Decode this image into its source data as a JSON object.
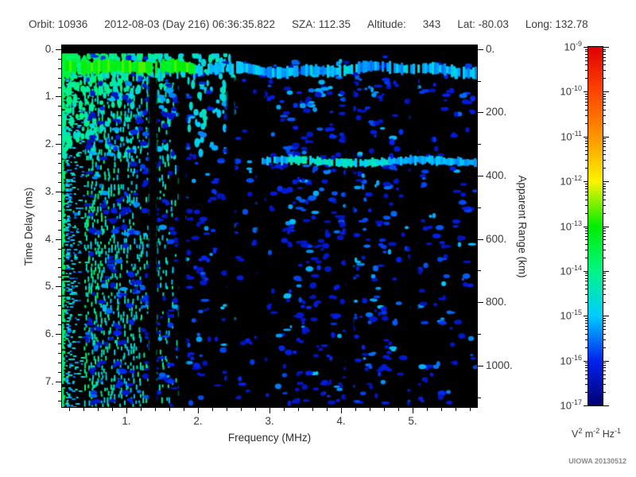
{
  "header": {
    "segments": [
      "Orbit: 10936",
      "2012-08-03 (Day 216) 06:36:35.822",
      "SZA: 112.35",
      "Altitude:",
      "343",
      "Lat: -80.03",
      "Long: 132.78"
    ]
  },
  "watermark": "UIOWA 20130512",
  "chart_data": {
    "type": "heatmap",
    "description": "Radar sounder ionogram: received echo spectral density versus sounding frequency and echo time delay",
    "xlabel": "Frequency (MHz)",
    "x_range": [
      0.1,
      5.9
    ],
    "x_ticks": [
      {
        "v": 1,
        "label": "1."
      },
      {
        "v": 2,
        "label": "2."
      },
      {
        "v": 3,
        "label": "3."
      },
      {
        "v": 4,
        "label": "4."
      },
      {
        "v": 5,
        "label": "5."
      }
    ],
    "x_minor_step": 0.2,
    "ylabel_left": "Time Delay (ms)",
    "y_range": [
      -0.08,
      7.54
    ],
    "y_ticks": [
      {
        "v": 0,
        "label": "0."
      },
      {
        "v": 1,
        "label": "1."
      },
      {
        "v": 2,
        "label": "2."
      },
      {
        "v": 3,
        "label": "3."
      },
      {
        "v": 4,
        "label": "4."
      },
      {
        "v": 5,
        "label": "5."
      },
      {
        "v": 6,
        "label": "6."
      },
      {
        "v": 7,
        "label": "7."
      }
    ],
    "y_minor_step": 0.2,
    "ylabel_right": "Apparent Range (km)",
    "km_per_ms": 150,
    "y2_ticks": [
      {
        "km": 0,
        "label": "0."
      },
      {
        "km": 200,
        "label": "200."
      },
      {
        "km": 400,
        "label": "400."
      },
      {
        "km": 600,
        "label": "600."
      },
      {
        "km": 800,
        "label": "800."
      },
      {
        "km": 1000,
        "label": "1000."
      }
    ],
    "y2_minor_km": [
      100,
      300,
      500,
      700,
      900,
      1100
    ],
    "background": "#000000",
    "seed": 20130512,
    "colorbar": {
      "exponents": [
        -9,
        -10,
        -11,
        -12,
        -13,
        -14,
        -15,
        -16,
        -17
      ],
      "scale": "log10",
      "stops": [
        {
          "e": -17,
          "c": "#000070"
        },
        {
          "e": -16,
          "c": "#0022ee"
        },
        {
          "e": -15,
          "c": "#00ccff"
        },
        {
          "e": -14,
          "c": "#00f585"
        },
        {
          "e": -13,
          "c": "#00ee00"
        },
        {
          "e": -12,
          "c": "#fdf400"
        },
        {
          "e": -11,
          "c": "#ff9400"
        },
        {
          "e": -10,
          "c": "#ff4500"
        },
        {
          "e": -9,
          "c": "#dd0000"
        }
      ],
      "unit_parts": [
        {
          "b": "V",
          "s": "2"
        },
        {
          "b": " m",
          "s": "-2"
        },
        {
          "b": " Hz",
          "s": "-1"
        }
      ]
    },
    "features": {
      "top_blank_band": {
        "delay_max": 0.09
      },
      "first_echo": {
        "delay": 0.33,
        "thickness_ms": 0.22,
        "freq_range": [
          0.1,
          5.9
        ],
        "green_until_mhz": 1.95,
        "green_intensity_exp": -13.15,
        "blue_intensity_exp": -15.25
      },
      "ionosphere_region": {
        "freq_range": [
          0.1,
          2.5
        ],
        "delay_range": [
          0.12,
          2.3
        ],
        "intensity_exp_range": [
          -15.0,
          -13.0
        ]
      },
      "left_edge_band": {
        "freq_range": [
          0.1,
          0.45
        ],
        "delay_range": [
          0.1,
          7.54
        ],
        "intensity_exp_range": [
          -14.3,
          -13.2
        ]
      },
      "vertical_streaks": {
        "freq_range": [
          0.42,
          1.75
        ],
        "delay_range": [
          0.3,
          7.54
        ],
        "intensity_exp_range": [
          -15.2,
          -14.0
        ]
      },
      "surface_echo": {
        "delay": 2.37,
        "thickness_ms": 0.15,
        "freq_range": [
          2.9,
          5.9
        ],
        "bright_freq_range": [
          3.25,
          4.65
        ],
        "intensity_exp": -14.7
      },
      "scatter_noise": {
        "count": 950,
        "delay_range": [
          0.15,
          7.5
        ],
        "intensity_exp_range": [
          -16.4,
          -15.0
        ],
        "bands": [
          {
            "freq_range": [
              0.45,
              2.1
            ],
            "weight": 0.35
          },
          {
            "freq_range": [
              2.1,
              3.2
            ],
            "weight": 0.12
          },
          {
            "freq_range": [
              3.2,
              4.7
            ],
            "weight": 0.38
          },
          {
            "freq_range": [
              4.7,
              5.9
            ],
            "weight": 0.15
          }
        ]
      },
      "blank_columns": {
        "freqs": [
          1.37,
          1.78,
          2.46,
          2.88,
          4.12,
          5.02
        ],
        "width_mhz": 0.09
      }
    }
  }
}
